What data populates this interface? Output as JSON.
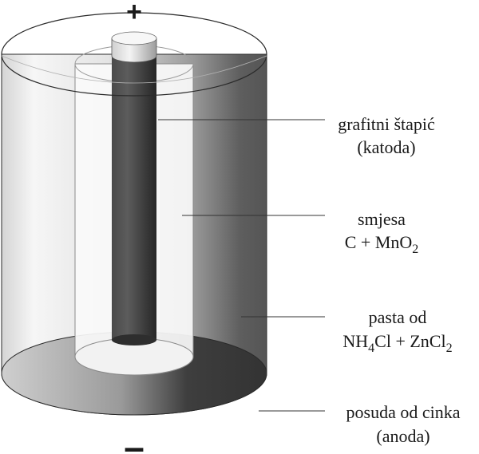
{
  "diagram": {
    "terminal_positive": "+",
    "terminal_negative": "–",
    "labels": {
      "cathode": {
        "line1": "grafitni štapić",
        "line2": "(katoda)"
      },
      "mixture": {
        "line1": "smjesa",
        "line2_main": "C + MnO",
        "line2_sub": "2"
      },
      "paste": {
        "line1": "pasta od",
        "line2_part1": "NH",
        "line2_sub1": "4",
        "line2_part2": "Cl + ZnCl",
        "line2_sub2": "2"
      },
      "anode": {
        "line1": "posuda od cinka",
        "line2": "(anoda)"
      }
    }
  },
  "colors": {
    "zinc_light": "#f4f4f4",
    "zinc_dark": "#5a5a5a",
    "graphite_rod": "#3c3c3c",
    "bottom_dark": "#3a3a3a",
    "inner_cylinder": "#fafafa"
  }
}
